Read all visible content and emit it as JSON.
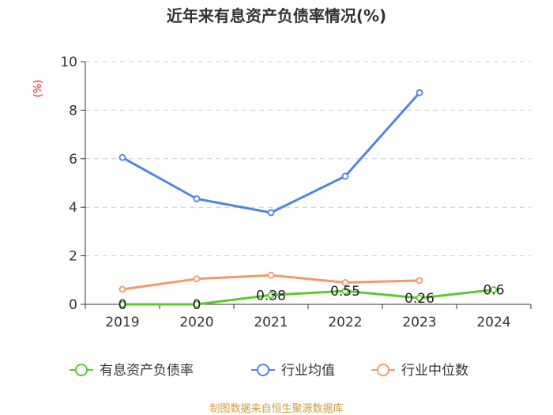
{
  "chart_data": {
    "type": "line",
    "title": "近年来有息资产负债率情况(%)",
    "ylabel": "(%)",
    "xlabel": "",
    "categories": [
      "2019",
      "2020",
      "2021",
      "2022",
      "2023",
      "2024"
    ],
    "ylim": [
      0,
      10
    ],
    "yticks": [
      "0",
      "2",
      "4",
      "6",
      "8",
      "10"
    ],
    "grid": true,
    "legend_position": "bottom",
    "series": [
      {
        "name": "有息资产负债率",
        "color": "#5cc92d",
        "values": [
          0,
          0,
          0.38,
          0.55,
          0.26,
          0.6
        ],
        "labels": [
          "0",
          "0",
          "0.38",
          "0.55",
          "0.26",
          "0.6"
        ]
      },
      {
        "name": "行业均值",
        "color": "#4f86e0",
        "values": [
          6.05,
          4.35,
          3.78,
          5.28,
          8.72,
          null
        ]
      },
      {
        "name": "行业中位数",
        "color": "#f29a6a",
        "values": [
          0.62,
          1.05,
          1.2,
          0.9,
          0.98,
          null
        ]
      }
    ],
    "source": "制图数据来自恒生聚源数据库"
  }
}
